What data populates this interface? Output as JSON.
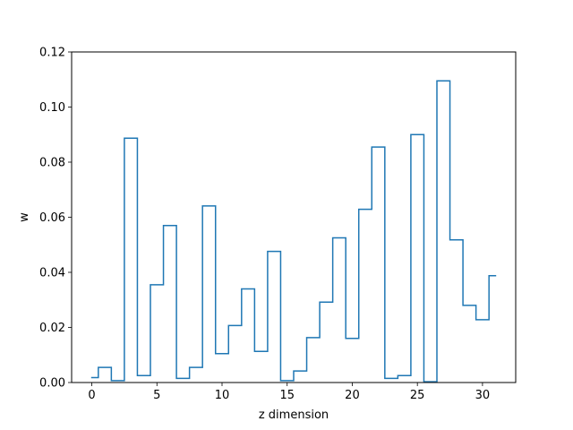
{
  "chart_data": {
    "type": "line",
    "style": "step",
    "xlabel": "z dimension",
    "ylabel": "w",
    "xlim": [
      -1.55,
      32.55
    ],
    "ylim": [
      0,
      0.12
    ],
    "xticks": [
      0,
      5,
      10,
      15,
      20,
      25,
      30
    ],
    "yticks": [
      0.0,
      0.02,
      0.04,
      0.06,
      0.08,
      0.1,
      0.12
    ],
    "xtick_labels": [
      "0",
      "5",
      "10",
      "15",
      "20",
      "25",
      "30"
    ],
    "ytick_labels": [
      "0.00",
      "0.02",
      "0.04",
      "0.06",
      "0.08",
      "0.10",
      "0.12"
    ],
    "grid": false,
    "series": [
      {
        "color": "#1f77b4",
        "x": [
          0,
          1,
          2,
          3,
          4,
          5,
          6,
          7,
          8,
          9,
          10,
          11,
          12,
          13,
          14,
          15,
          16,
          17,
          18,
          19,
          20,
          21,
          22,
          23,
          24,
          25,
          26,
          27,
          28,
          29,
          30,
          31
        ],
        "values": [
          0.0018,
          0.0055,
          0.0007,
          0.0887,
          0.0025,
          0.0355,
          0.057,
          0.0015,
          0.0055,
          0.0641,
          0.0105,
          0.0207,
          0.034,
          0.0113,
          0.0476,
          0.0007,
          0.0042,
          0.0163,
          0.0292,
          0.0525,
          0.016,
          0.0629,
          0.0855,
          0.0015,
          0.0025,
          0.09,
          0.0003,
          0.1095,
          0.0518,
          0.028,
          0.0228,
          0.0388
        ]
      }
    ]
  }
}
